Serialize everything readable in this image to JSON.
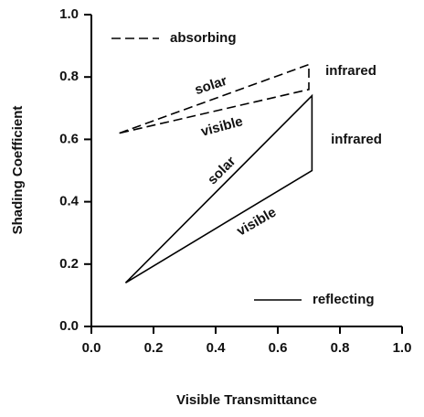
{
  "chart_data": {
    "type": "line",
    "x_label": "Visible Transmittance",
    "y_label": "Shading Coefficient",
    "xlim": [
      0,
      1
    ],
    "ylim": [
      0,
      1
    ],
    "xticks": [
      {
        "value": 0,
        "label": "0.0"
      },
      0.2,
      0.4,
      0.6,
      0.8,
      {
        "value": 1,
        "label": "1.0"
      }
    ],
    "yticks": [
      {
        "value": 0,
        "label": "0.0"
      },
      0.2,
      0.4,
      0.6,
      0.8,
      {
        "value": 1,
        "label": "1.0"
      }
    ],
    "series": [
      {
        "name": "absorbing",
        "color": "#000000",
        "dashed": true,
        "x": [
          0.09,
          0.7,
          0.7,
          0.09
        ],
        "values": [
          0.62,
          0.84,
          0.76,
          0.62
        ]
      },
      {
        "name": "reflecting",
        "color": "#000000",
        "dashed": false,
        "x": [
          0.11,
          0.71,
          0.71,
          0.11
        ],
        "values": [
          0.14,
          0.74,
          0.5,
          0.14
        ]
      }
    ],
    "annotations": [
      "solar",
      "infrared",
      "visible",
      "infrared",
      "solar",
      "visible"
    ]
  }
}
